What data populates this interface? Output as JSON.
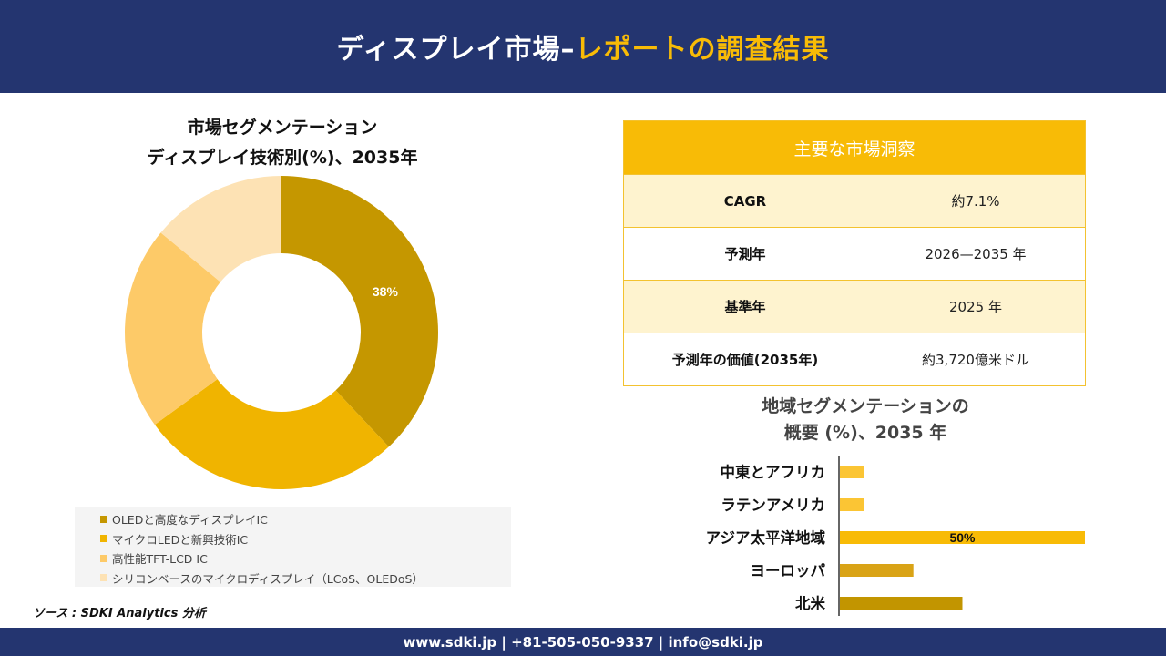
{
  "header": {
    "title_main": "ディスプレイ市場",
    "title_dash": "–",
    "title_highlight": "レポートの調査結果"
  },
  "donut": {
    "title_line1": "市場セグメンテーション",
    "title_line2": "ディスプレイ技術別(%)、2035年"
  },
  "insights": {
    "heading": "主要な市場洞察",
    "rows": [
      {
        "label": "CAGR",
        "value": "約7.1%"
      },
      {
        "label": "予測年",
        "value": "2026—2035 年"
      },
      {
        "label": "基準年",
        "value": "2025 年"
      },
      {
        "label": "予測年の価値(2035年)",
        "value": "約3,720億米ドル"
      }
    ]
  },
  "bars": {
    "title_line1": "地域セグメンテーションの",
    "title_line2": "概要 (%)、2035 年"
  },
  "source": "ソース : SDKI Analytics 分析",
  "footer": "www.sdki.jp | +81-505-050-9337 | info@sdki.jp",
  "chart_data": [
    {
      "type": "pie",
      "title": "市場セグメンテーション ディスプレイ技術別(%)、2035年",
      "categories": [
        "OLEDと高度なディスプレイIC",
        "マイクロLEDと新興技術IC",
        "高性能TFT-LCD IC",
        "シリコンベースのマイクロディスプレイ（LCoS、OLEDoS）"
      ],
      "values": [
        38,
        27,
        21,
        14
      ],
      "data_labels": [
        "38%",
        "",
        "",
        ""
      ],
      "colors": [
        "#c59700",
        "#f0b400",
        "#fdca68",
        "#fde2b4"
      ],
      "legend_position": "bottom"
    },
    {
      "type": "bar",
      "orientation": "horizontal",
      "title": "地域セグメンテーションの 概要 (%)、2035 年",
      "categories": [
        "中東とアフリカ",
        "ラテンアメリカ",
        "アジア太平洋地域",
        "ヨーロッパ",
        "北米"
      ],
      "values": [
        5,
        5,
        50,
        15,
        25
      ],
      "data_labels": [
        "",
        "",
        "50%",
        "",
        ""
      ],
      "colors": [
        "#fbc534",
        "#fbc534",
        "#f8bb06",
        "#d9a316",
        "#c29500"
      ],
      "xlim": [
        0,
        50
      ],
      "grid": false
    }
  ]
}
